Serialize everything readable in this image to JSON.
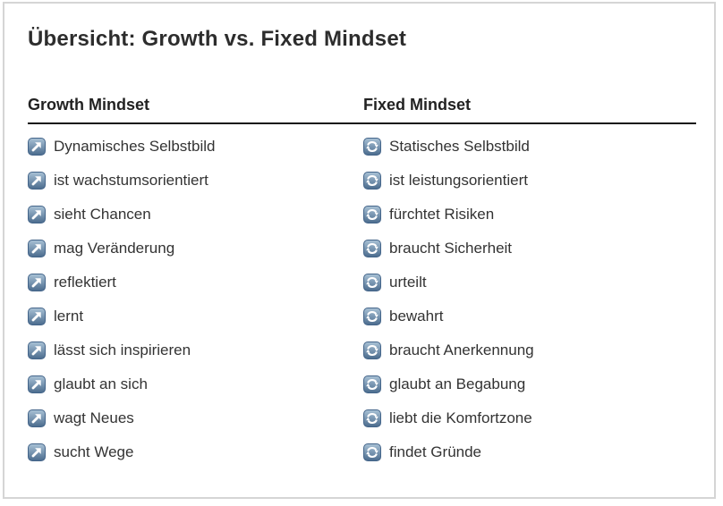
{
  "page": {
    "title": "Übersicht: Growth vs. Fixed Mindset"
  },
  "table": {
    "columns": [
      {
        "header": "Growth Mindset",
        "icon": "arrow-up-right-icon",
        "items": [
          "Dynamisches Selbstbild",
          "ist wachstumsorientiert",
          "sieht Chancen",
          "mag Veränderung",
          "reflektiert",
          "lernt",
          "lässt sich inspirieren",
          "glaubt an sich",
          "wagt Neues",
          "sucht Wege"
        ]
      },
      {
        "header": "Fixed Mindset",
        "icon": "cycle-arrows-icon",
        "items": [
          "Statisches Selbstbild",
          "ist leistungsorientiert",
          "fürchtet Risiken",
          "braucht Sicherheit",
          "urteilt",
          "bewahrt",
          "braucht Anerkennung",
          "glaubt an Begabung",
          "liebt die Komfortzone",
          "findet Gründe"
        ]
      }
    ]
  },
  "colors": {
    "icon_gradient_top": "#a9c2d6",
    "icon_gradient_bottom": "#4a6b8d",
    "icon_border": "#44658a",
    "icon_glyph": "#ffffff",
    "divider": "#161616",
    "frame_border": "#d5d5d5",
    "heading_text": "#222222",
    "body_text": "#333333"
  }
}
